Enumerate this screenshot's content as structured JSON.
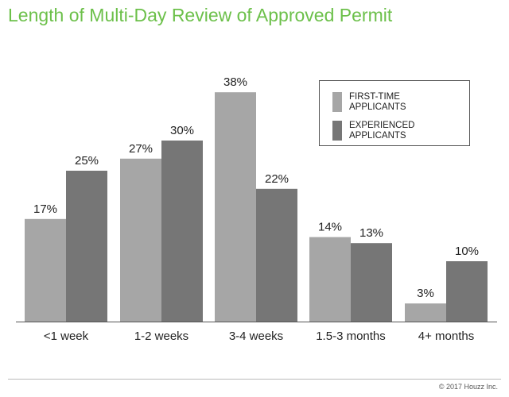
{
  "title": "Length of Multi-Day Review of Approved Permit",
  "copyright": "© 2017 Houzz Inc.",
  "colors": {
    "title": "#6cc04a",
    "first_time": "#a6a6a6",
    "experienced": "#767676"
  },
  "legend": [
    {
      "label": "FIRST-TIME\nAPPLICANTS"
    },
    {
      "label": "EXPERIENCED\nAPPLICANTS"
    }
  ],
  "chart_data": {
    "type": "bar",
    "title": "Length of Multi-Day Review of Approved Permit",
    "xlabel": "",
    "ylabel": "",
    "ylim": [
      0,
      40
    ],
    "grid": false,
    "legend_position": "top-right",
    "categories": [
      "<1 week",
      "1-2 weeks",
      "3-4 weeks",
      "1.5-3 months",
      "4+ months"
    ],
    "series": [
      {
        "name": "FIRST-TIME APPLICANTS",
        "values": [
          17,
          27,
          38,
          14,
          3
        ],
        "labels": [
          "17%",
          "27%",
          "38%",
          "14%",
          "3%"
        ]
      },
      {
        "name": "EXPERIENCED APPLICANTS",
        "values": [
          25,
          30,
          22,
          13,
          10
        ],
        "labels": [
          "25%",
          "30%",
          "22%",
          "13%",
          "10%"
        ]
      }
    ]
  }
}
